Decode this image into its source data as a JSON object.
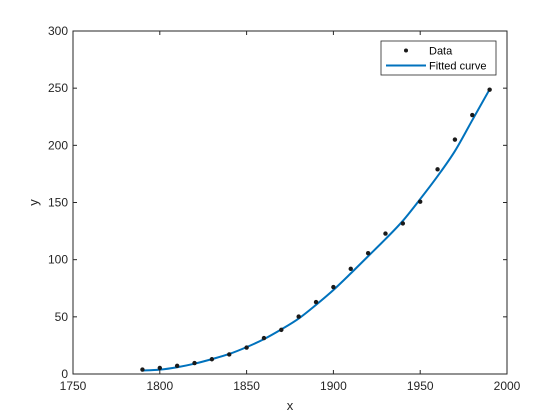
{
  "chart_data": {
    "type": "scatter",
    "title": "",
    "xlabel": "x",
    "ylabel": "y",
    "xlim": [
      1750,
      2000
    ],
    "ylim": [
      0,
      300
    ],
    "x_ticks": [
      1750,
      1800,
      1850,
      1900,
      1950,
      2000
    ],
    "y_ticks": [
      0,
      50,
      100,
      150,
      200,
      250,
      300
    ],
    "grid": false,
    "legend_position": "top-right",
    "colors": {
      "data": "#1a1a1a",
      "curve": "#0072bd",
      "axes": "#262626"
    },
    "series": [
      {
        "name": "Data",
        "kind": "markers",
        "x": [
          1790,
          1800,
          1810,
          1820,
          1830,
          1840,
          1850,
          1860,
          1870,
          1880,
          1890,
          1900,
          1910,
          1920,
          1930,
          1940,
          1950,
          1960,
          1970,
          1980,
          1990
        ],
        "y": [
          3.9,
          5.3,
          7.2,
          9.6,
          12.9,
          17.1,
          23.1,
          31.4,
          38.6,
          50.2,
          62.9,
          76.0,
          92.0,
          105.7,
          122.8,
          131.7,
          150.7,
          179.0,
          205.0,
          226.5,
          248.7
        ]
      },
      {
        "name": "Fitted curve",
        "kind": "line",
        "x": [
          1790,
          1800,
          1810,
          1820,
          1830,
          1840,
          1850,
          1860,
          1870,
          1880,
          1890,
          1900,
          1910,
          1920,
          1930,
          1940,
          1950,
          1960,
          1970,
          1980,
          1990
        ],
        "y": [
          3.0,
          3.8,
          5.9,
          9.0,
          13.0,
          17.5,
          23.5,
          30.5,
          39.0,
          48.5,
          60.5,
          73.5,
          88.0,
          103.0,
          118.0,
          134.0,
          153.0,
          173.0,
          195.0,
          222.0,
          249.0
        ]
      }
    ]
  }
}
